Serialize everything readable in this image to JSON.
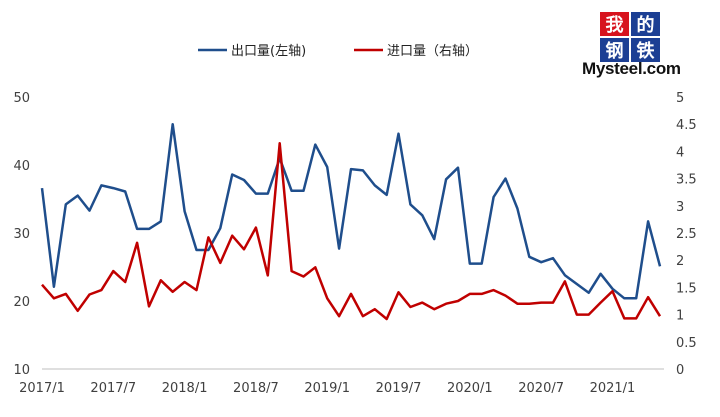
{
  "logo": {
    "chars": [
      "我",
      "的",
      "钢",
      "铁"
    ],
    "colors": [
      "#d7131e",
      "#1c3f94",
      "#1c3f94",
      "#1c3f94"
    ],
    "wordmark": "Mysteel.com"
  },
  "chart_data": {
    "type": "line",
    "x": [
      "2017/1",
      "2017/2",
      "2017/3",
      "2017/4",
      "2017/5",
      "2017/6",
      "2017/7",
      "2017/8",
      "2017/9",
      "2017/10",
      "2017/11",
      "2017/12",
      "2018/1",
      "2018/2",
      "2018/3",
      "2018/4",
      "2018/5",
      "2018/6",
      "2018/7",
      "2018/8",
      "2018/9",
      "2018/10",
      "2018/11",
      "2018/12",
      "2019/1",
      "2019/2",
      "2019/3",
      "2019/4",
      "2019/5",
      "2019/6",
      "2019/7",
      "2019/8",
      "2019/9",
      "2019/10",
      "2019/11",
      "2019/12",
      "2020/1",
      "2020/2",
      "2020/3",
      "2020/4",
      "2020/5",
      "2020/6",
      "2020/7",
      "2020/8",
      "2020/9",
      "2020/10",
      "2020/11",
      "2020/12",
      "2021/1",
      "2021/2",
      "2021/3",
      "2021/4",
      "2021/5"
    ],
    "x_tick_labels": [
      "2017/1",
      "2017/7",
      "2018/1",
      "2018/7",
      "2019/1",
      "2019/7",
      "2020/1",
      "2020/7",
      "2021/1"
    ],
    "x_tick_indices": [
      0,
      6,
      12,
      18,
      24,
      30,
      36,
      42,
      48
    ],
    "series": [
      {
        "name": "出口量(左轴)",
        "axis": "left",
        "color": "#1f4e8c",
        "values": [
          36.6,
          22.1,
          34.2,
          35.5,
          33.3,
          37.0,
          36.6,
          36.1,
          30.6,
          30.6,
          31.7,
          46.0,
          33.2,
          27.5,
          27.5,
          30.7,
          38.6,
          37.8,
          35.8,
          35.8,
          41.0,
          36.2,
          36.2,
          43.0,
          39.7,
          27.7,
          39.4,
          39.2,
          37.0,
          35.6,
          44.6,
          34.2,
          32.6,
          29.1,
          37.9,
          39.6,
          25.5,
          25.5,
          35.3,
          38.0,
          33.6,
          26.5,
          25.7,
          26.3,
          23.8,
          22.5,
          21.2,
          24.0,
          21.8,
          20.4,
          20.4,
          31.7,
          25.1
        ]
      },
      {
        "name": "进口量（右轴）",
        "axis": "right",
        "color": "#c00000",
        "values": [
          1.55,
          1.3,
          1.38,
          1.07,
          1.37,
          1.45,
          1.8,
          1.6,
          2.32,
          1.15,
          1.63,
          1.42,
          1.6,
          1.45,
          2.42,
          1.95,
          2.45,
          2.2,
          2.6,
          1.72,
          4.15,
          1.8,
          1.7,
          1.87,
          1.3,
          0.97,
          1.38,
          0.97,
          1.1,
          0.92,
          1.41,
          1.14,
          1.22,
          1.1,
          1.2,
          1.25,
          1.38,
          1.38,
          1.45,
          1.35,
          1.2,
          1.2,
          1.22,
          1.22,
          1.61,
          1.0,
          1.0,
          1.22,
          1.43,
          0.93,
          0.93,
          1.32,
          0.97
        ]
      }
    ],
    "y_left": {
      "min": 10,
      "max": 50,
      "ticks": [
        10,
        20,
        30,
        40,
        50
      ]
    },
    "y_right": {
      "min": 0,
      "max": 5,
      "ticks": [
        0,
        0.5,
        1,
        1.5,
        2,
        2.5,
        3,
        3.5,
        4,
        4.5,
        5
      ]
    },
    "legend_position": "top",
    "grid": false
  }
}
